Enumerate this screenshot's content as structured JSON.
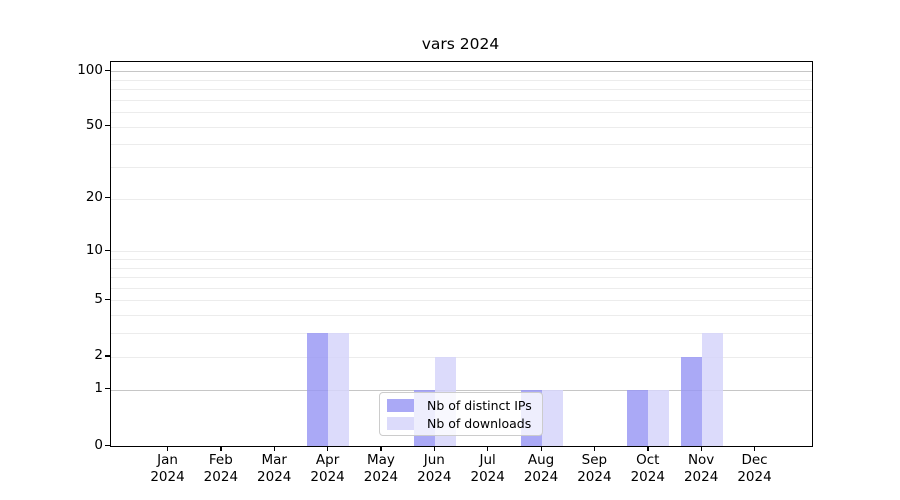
{
  "title": "vars 2024",
  "chart_data": {
    "type": "bar",
    "title": "vars 2024",
    "xlabel": "",
    "ylabel": "",
    "yscale": "log1p",
    "grid": true,
    "ylim": [
      0,
      112
    ],
    "y_ticks": [
      0,
      1,
      2,
      5,
      10,
      20,
      50,
      100
    ],
    "y_major_grid": [
      1,
      100
    ],
    "y_minor_grid": [
      2,
      3,
      4,
      5,
      6,
      7,
      8,
      9,
      10,
      20,
      30,
      40,
      50,
      60,
      70,
      80,
      90
    ],
    "year": "2024",
    "months": [
      "Jan",
      "Feb",
      "Mar",
      "Apr",
      "May",
      "Jun",
      "Jul",
      "Aug",
      "Sep",
      "Oct",
      "Nov",
      "Dec"
    ],
    "categories": [
      "Jan 2024",
      "Feb 2024",
      "Mar 2024",
      "Apr 2024",
      "May 2024",
      "Jun 2024",
      "Jul 2024",
      "Aug 2024",
      "Sep 2024",
      "Oct 2024",
      "Nov 2024",
      "Dec 2024"
    ],
    "series": [
      {
        "name": "Nb of distinct IPs",
        "color": "#a9a9f4",
        "color_rgba": "rgba(151,150,244,0.82)",
        "values": [
          0,
          0,
          0,
          3,
          0,
          1,
          0,
          1,
          0,
          1,
          2,
          0
        ]
      },
      {
        "name": "Nb of downloads",
        "color": "#dcdbf9",
        "color_rgba": "rgba(214,213,250,0.85)",
        "values": [
          0,
          0,
          0,
          3,
          0,
          2,
          0,
          1,
          0,
          1,
          3,
          0
        ]
      }
    ],
    "legend_position": "lower center"
  }
}
